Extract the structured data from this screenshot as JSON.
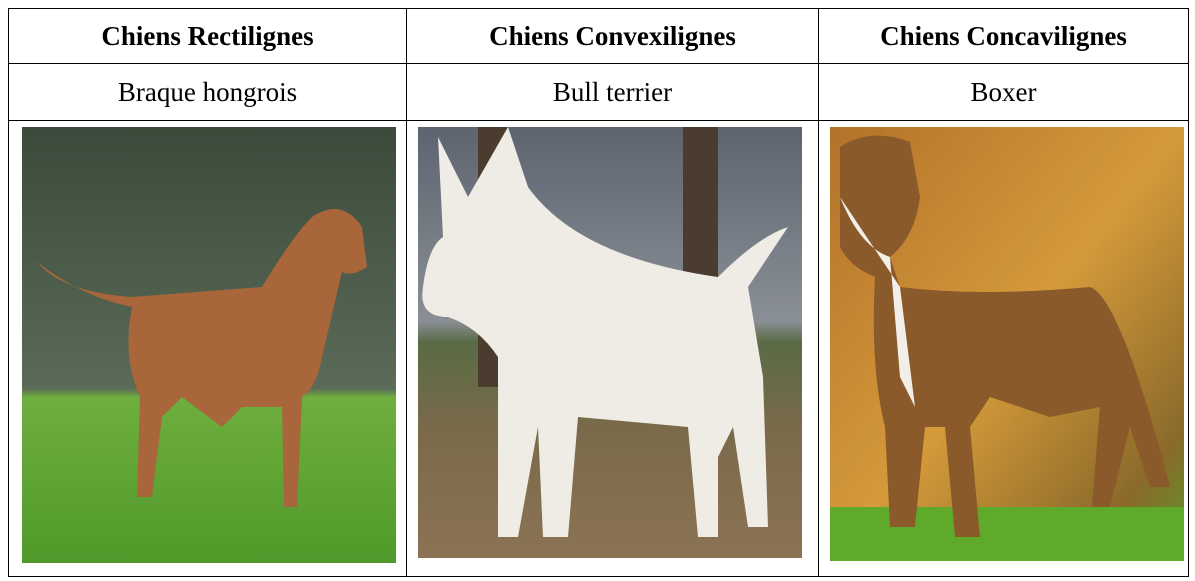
{
  "table": {
    "header": [
      "Chiens Rectilignes",
      "Chiens Convexilignes",
      "Chiens Concavilignes"
    ],
    "rows": [
      [
        "Braque hongrois",
        "Bull terrier",
        "Boxer"
      ]
    ]
  }
}
